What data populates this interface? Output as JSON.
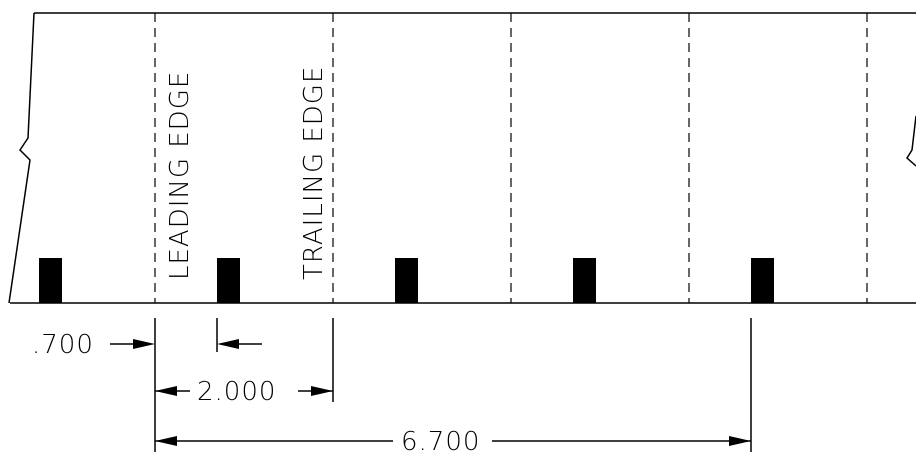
{
  "labels": {
    "leading_edge": "LEADING EDGE",
    "trailing_edge": "TRAILING EDGE"
  },
  "dimensions": {
    "offset": ".700",
    "pitch": "2.000",
    "span": "6.700"
  },
  "colors": {
    "ink": "#000000",
    "background": "#ffffff"
  }
}
